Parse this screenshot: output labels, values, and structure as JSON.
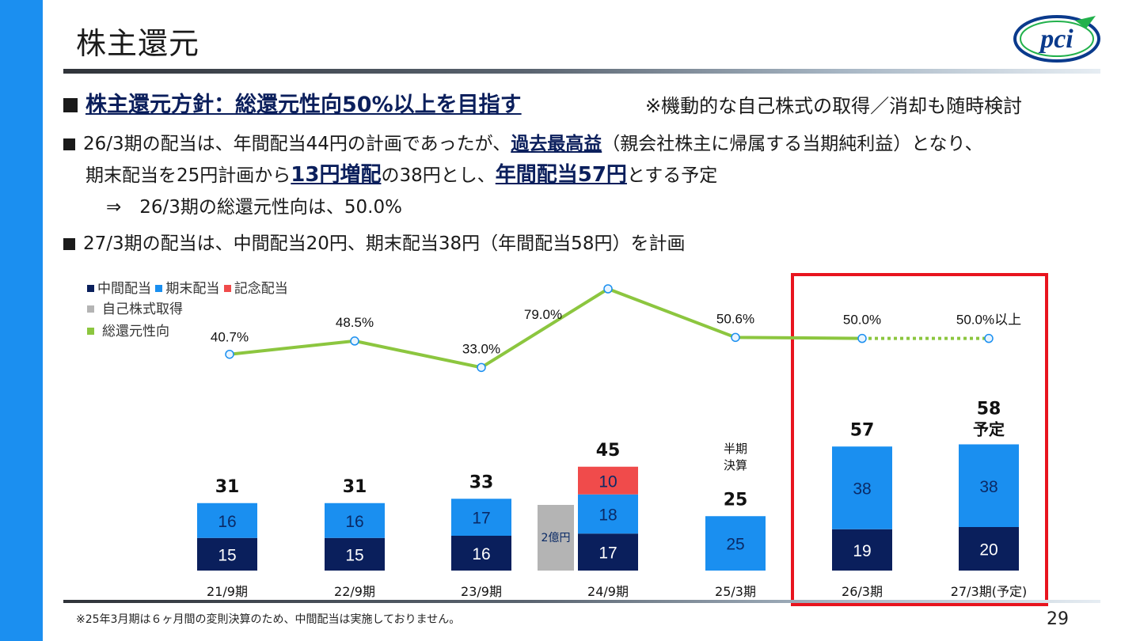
{
  "header": {
    "title": "株主還元",
    "page_number": "29"
  },
  "policy": {
    "label": "株主還元方針：総還元性向50%以上を目指す",
    "note": "※機動的な自己株式の取得／消却も随時検討"
  },
  "bullets": {
    "b1_p1": "26/3期の配当は、年間配当44円の計画であったが、",
    "b1_em1": "過去最高益",
    "b1_p2": "（親会社株主に帰属する当期純利益）となり、",
    "b1_l2_p1": "期末配当を25円計画から",
    "b1_em2": "13円増配",
    "b1_l2_p2": "の38円とし、",
    "b1_em3": "年間配当57円",
    "b1_l2_p3": "とする予定",
    "b1_l3": "⇒　26/3期の総還元性向は、50.0%",
    "b2": "27/3期の配当は、中間配当20円、期末配当38円（年間配当58円）を計画"
  },
  "legend": {
    "interim": "中間配当",
    "yearend": "期末配当",
    "memorial": "記念配当",
    "buyback": "自己株式取得",
    "ratio": "総還元性向"
  },
  "colors": {
    "interim": "#0a1f5c",
    "yearend": "#1a8ff0",
    "memorial": "#f04b4b",
    "buyback": "#b4b4b4",
    "ratio": "#8cc63f",
    "highlight": "#e8141e"
  },
  "chart_data": {
    "type": "bar",
    "categories": [
      "21/9期",
      "22/9期",
      "23/9期",
      "24/9期",
      "25/3期",
      "26/3期",
      "27/3期(予定)"
    ],
    "series": [
      {
        "name": "中間配当",
        "values": [
          15,
          15,
          16,
          17,
          null,
          19,
          20
        ]
      },
      {
        "name": "期末配当",
        "values": [
          16,
          16,
          17,
          18,
          25,
          38,
          38
        ]
      },
      {
        "name": "記念配当",
        "values": [
          null,
          null,
          null,
          10,
          null,
          null,
          null
        ]
      },
      {
        "name": "自己株式取得",
        "values": [
          null,
          null,
          null,
          "2億円",
          null,
          null,
          null
        ]
      },
      {
        "name": "総還元性向",
        "values": [
          40.7,
          48.5,
          33.0,
          79.0,
          50.6,
          50.0,
          50.0
        ]
      }
    ],
    "totals": [
      "31",
      "31",
      "33",
      "45",
      "25",
      "57",
      "58"
    ],
    "total_suffix": {
      "6": "予定"
    },
    "ratio_labels": [
      "40.7%",
      "48.5%",
      "33.0%",
      "79.0%",
      "50.6%",
      "50.0%",
      "50.0%以上"
    ],
    "buyback_label": "2億円",
    "semi_annual_note": "半期\n決算",
    "highlight": "26/3期 – 27/3期(予定)"
  },
  "footnote": "※25年3月期は６ヶ月間の変則決算のため、中間配当は実施しておりません。"
}
